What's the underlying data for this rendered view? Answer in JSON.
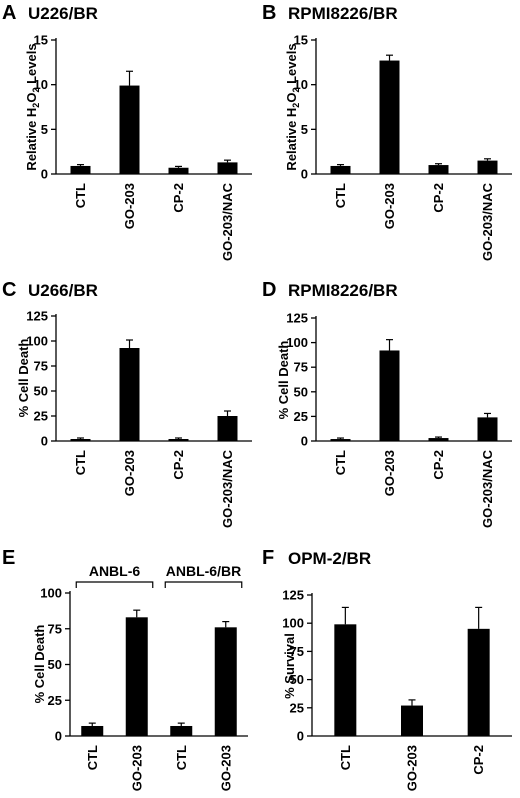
{
  "chart_data": [
    {
      "panel": "A",
      "title": "U226/BR",
      "type": "bar",
      "ylabel": "Relative H2O2 Levels",
      "ylim": [
        0,
        15
      ],
      "yticks": [
        0,
        5,
        10,
        15
      ],
      "categories": [
        "CTL",
        "GO-203",
        "CP-2",
        "GO-203/NAC"
      ],
      "values": [
        0.9,
        9.9,
        0.7,
        1.3
      ],
      "errors": [
        0.15,
        1.6,
        0.15,
        0.25
      ]
    },
    {
      "panel": "B",
      "title": "RPMI8226/BR",
      "type": "bar",
      "ylabel": "Relative H2O2 Levels",
      "ylim": [
        0,
        15
      ],
      "yticks": [
        0,
        5,
        10,
        15
      ],
      "categories": [
        "CTL",
        "GO-203",
        "CP-2",
        "GO-203/NAC"
      ],
      "values": [
        0.9,
        12.7,
        1.0,
        1.5
      ],
      "errors": [
        0.15,
        0.6,
        0.15,
        0.2
      ]
    },
    {
      "panel": "C",
      "title": "U266/BR",
      "type": "bar",
      "ylabel": "% Cell Death",
      "ylim": [
        0,
        125
      ],
      "yticks": [
        0,
        25,
        50,
        75,
        100,
        125
      ],
      "categories": [
        "CTL",
        "GO-203",
        "CP-2",
        "GO-203/NAC"
      ],
      "values": [
        2,
        93,
        2,
        25
      ],
      "errors": [
        1,
        8,
        1,
        5
      ]
    },
    {
      "panel": "D",
      "title": "RPMI8226/BR",
      "type": "bar",
      "ylabel": "% Cell Death",
      "ylim": [
        0,
        125
      ],
      "yticks": [
        0,
        25,
        50,
        75,
        100,
        125
      ],
      "categories": [
        "CTL",
        "GO-203",
        "CP-2",
        "GO-203/NAC"
      ],
      "values": [
        2,
        92,
        3,
        24
      ],
      "errors": [
        1,
        11,
        1,
        4
      ]
    },
    {
      "panel": "E",
      "title": "",
      "type": "bar",
      "ylabel": "% Cell Death",
      "ylim": [
        0,
        100
      ],
      "yticks": [
        0,
        25,
        50,
        75,
        100
      ],
      "categories": [
        "CTL",
        "GO-203",
        "CTL",
        "GO-203"
      ],
      "groups": [
        {
          "label": "ANBL-6",
          "from": 0,
          "to": 1
        },
        {
          "label": "ANBL-6/BR",
          "from": 2,
          "to": 3
        }
      ],
      "values": [
        7,
        83,
        7,
        76
      ],
      "errors": [
        2,
        5,
        2,
        4
      ]
    },
    {
      "panel": "F",
      "title": "OPM-2/BR",
      "type": "bar",
      "ylabel": "% Survival",
      "ylim": [
        0,
        125
      ],
      "yticks": [
        0,
        25,
        50,
        75,
        100,
        125
      ],
      "categories": [
        "CTL",
        "GO-203",
        "CP-2"
      ],
      "values": [
        99,
        27,
        95
      ],
      "errors": [
        15,
        5,
        19
      ]
    }
  ]
}
